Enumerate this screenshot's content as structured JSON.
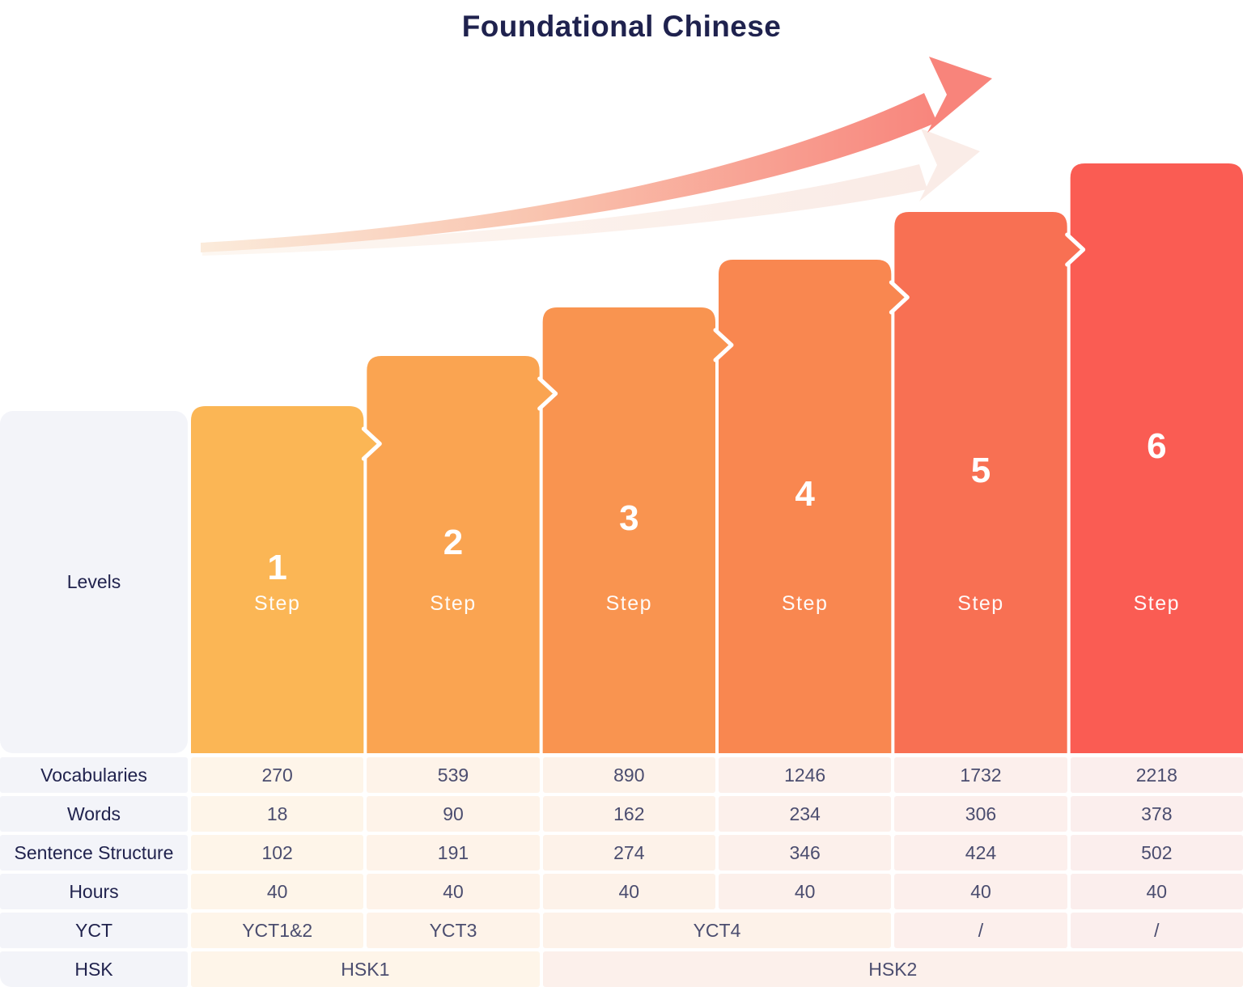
{
  "title": "Foundational Chinese",
  "panel": {
    "levels_label": "Levels"
  },
  "bars": [
    {
      "number": "1",
      "label": "Step"
    },
    {
      "number": "2",
      "label": "Step"
    },
    {
      "number": "3",
      "label": "Step"
    },
    {
      "number": "4",
      "label": "Step"
    },
    {
      "number": "5",
      "label": "Step"
    },
    {
      "number": "6",
      "label": "Step"
    }
  ],
  "chart_data": {
    "type": "bar",
    "title": "Foundational Chinese",
    "categories": [
      "Step 1",
      "Step 2",
      "Step 3",
      "Step 4",
      "Step 5",
      "Step 6"
    ],
    "series": [
      {
        "name": "Vocabularies",
        "values": [
          270,
          539,
          890,
          1246,
          1732,
          2218
        ]
      },
      {
        "name": "Words",
        "values": [
          18,
          90,
          162,
          234,
          306,
          378
        ]
      },
      {
        "name": "Sentence Structure",
        "values": [
          102,
          191,
          274,
          346,
          424,
          502
        ]
      },
      {
        "name": "Hours",
        "values": [
          40,
          40,
          40,
          40,
          40,
          40
        ]
      },
      {
        "name": "YCT",
        "values": [
          "YCT1&2",
          "YCT3",
          "YCT4",
          "YCT4",
          "/",
          "/"
        ]
      },
      {
        "name": "HSK",
        "values": [
          "HSK1",
          "HSK1",
          "HSK2",
          "HSK2",
          "HSK2",
          "HSK2"
        ]
      }
    ],
    "bar_colors": [
      "#FBB655",
      "#FAA451",
      "#F99450",
      "#F98750",
      "#F87053",
      "#FA5C53"
    ],
    "legend": false,
    "grid": false,
    "layout": "ascending stylized step bars with growth arrow, data table below"
  },
  "table": {
    "rows": [
      {
        "label": "Vocabularies",
        "cells": [
          {
            "text": "270",
            "span": 1
          },
          {
            "text": "539",
            "span": 1
          },
          {
            "text": "890",
            "span": 1
          },
          {
            "text": "1246",
            "span": 1
          },
          {
            "text": "1732",
            "span": 1
          },
          {
            "text": "2218",
            "span": 1
          }
        ]
      },
      {
        "label": "Words",
        "cells": [
          {
            "text": "18",
            "span": 1
          },
          {
            "text": "90",
            "span": 1
          },
          {
            "text": "162",
            "span": 1
          },
          {
            "text": "234",
            "span": 1
          },
          {
            "text": "306",
            "span": 1
          },
          {
            "text": "378",
            "span": 1
          }
        ]
      },
      {
        "label": "Sentence Structure",
        "cells": [
          {
            "text": "102",
            "span": 1
          },
          {
            "text": "191",
            "span": 1
          },
          {
            "text": "274",
            "span": 1
          },
          {
            "text": "346",
            "span": 1
          },
          {
            "text": "424",
            "span": 1
          },
          {
            "text": "502",
            "span": 1
          }
        ]
      },
      {
        "label": "Hours",
        "cells": [
          {
            "text": "40",
            "span": 1
          },
          {
            "text": "40",
            "span": 1
          },
          {
            "text": "40",
            "span": 1
          },
          {
            "text": "40",
            "span": 1
          },
          {
            "text": "40",
            "span": 1
          },
          {
            "text": "40",
            "span": 1
          }
        ]
      },
      {
        "label": "YCT",
        "cells": [
          {
            "text": "YCT1&2",
            "span": 1
          },
          {
            "text": "YCT3",
            "span": 1
          },
          {
            "text": "YCT4",
            "span": 2
          },
          {
            "text": "/",
            "span": 1
          },
          {
            "text": "/",
            "span": 1
          }
        ]
      },
      {
        "label": "HSK",
        "cells": [
          {
            "text": "HSK1",
            "span": 2
          },
          {
            "text": "HSK2",
            "span": 4
          }
        ]
      }
    ]
  },
  "colors": {
    "title_text": "#1F224E",
    "label_cell_bg": "#F3F4F9",
    "label_text": "#21234E",
    "value_text": "#4B4D6F",
    "column_tints": [
      "#FEF5E9",
      "#FEF3E9",
      "#FDF2E9",
      "#FCF0EB",
      "#FCEFEC",
      "#FBEEED"
    ],
    "arrow_main_gradient": [
      "#FBEBDB",
      "#F9C5B0",
      "#F8857C"
    ],
    "arrow_ghost_gradient": [
      "#FDF7F1",
      "#FAEBE6"
    ]
  }
}
